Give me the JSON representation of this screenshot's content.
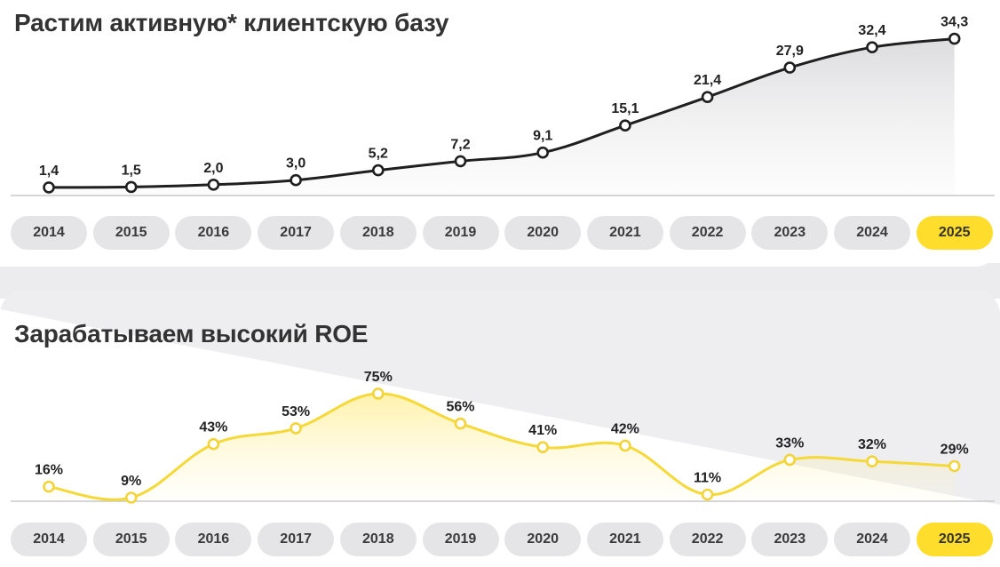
{
  "colors": {
    "accent": "#ffdd2d",
    "pill_bg": "#e5e5e7",
    "text": "#333333",
    "clients_line": "#1f1f1f",
    "roe_line": "#f5d93a"
  },
  "chart_data": [
    {
      "type": "line",
      "title": "Растим активную* клиентскую базу",
      "categories": [
        "2014",
        "2015",
        "2016",
        "2017",
        "2018",
        "2019",
        "2020",
        "2021",
        "2022",
        "2023",
        "2024",
        "2025"
      ],
      "values": [
        1.4,
        1.5,
        2.0,
        3.0,
        5.2,
        7.2,
        9.1,
        15.1,
        21.4,
        27.9,
        32.4,
        34.3
      ],
      "value_labels": [
        "1,4",
        "1,5",
        "2,0",
        "3,0",
        "5,2",
        "7,2",
        "9,1",
        "15,1",
        "21,4",
        "27,9",
        "32,4",
        "34,3"
      ],
      "highlighted_category": "2025",
      "ylim": [
        0,
        35
      ],
      "grid": false,
      "legend": "none"
    },
    {
      "type": "line",
      "title": "Зарабатываем высокий ROE",
      "categories": [
        "2014",
        "2015",
        "2016",
        "2017",
        "2018",
        "2019",
        "2020",
        "2021",
        "2022",
        "2023",
        "2024",
        "2025"
      ],
      "values": [
        16,
        9,
        43,
        53,
        75,
        56,
        41,
        42,
        11,
        33,
        32,
        29
      ],
      "value_labels": [
        "16%",
        "9%",
        "43%",
        "53%",
        "75%",
        "56%",
        "41%",
        "42%",
        "11%",
        "33%",
        "32%",
        "29%"
      ],
      "highlighted_category": "2025",
      "ylim": [
        0,
        80
      ],
      "grid": false,
      "legend": "none"
    }
  ]
}
